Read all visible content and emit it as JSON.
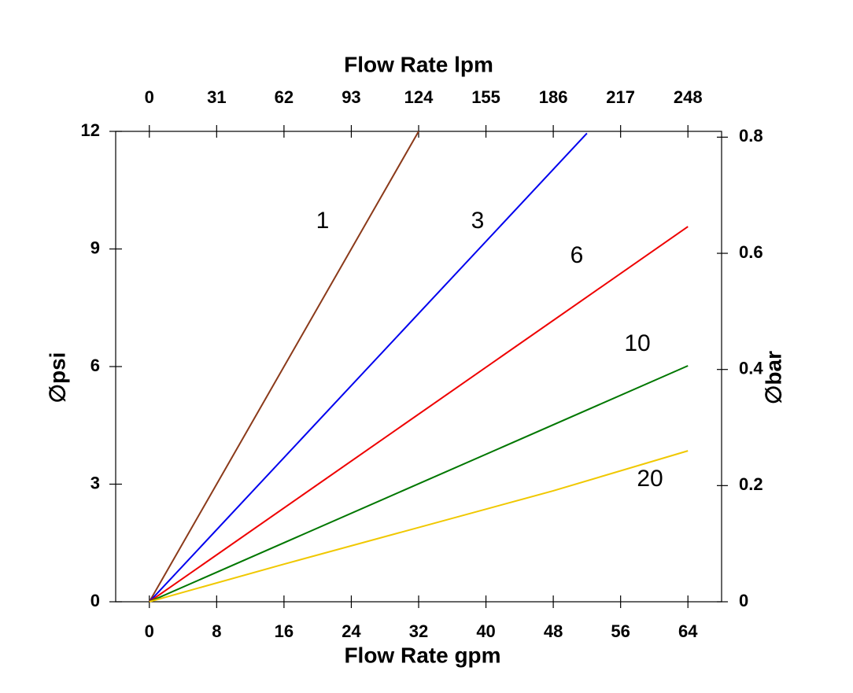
{
  "chart_data": {
    "type": "line",
    "xlabel": "Flow Rate gpm",
    "x2label": "Flow Rate lpm",
    "ylabel": "∅psi",
    "y2label": "∅bar",
    "xlim": [
      -4,
      68
    ],
    "xticks": [
      0,
      8,
      16,
      24,
      32,
      40,
      48,
      56,
      64
    ],
    "x2lim": [
      -15.5,
      263.5
    ],
    "x2ticks": [
      0,
      31,
      62,
      93,
      124,
      155,
      186,
      217,
      248
    ],
    "ylim": [
      0,
      12
    ],
    "yticks": [
      0,
      3,
      6,
      9,
      12
    ],
    "y2lim": [
      0,
      0.81
    ],
    "y2ticks": [
      0,
      0.2,
      0.4,
      0.6,
      0.8
    ],
    "series": [
      {
        "name": "1",
        "color": "#8b3a1a",
        "x": [
          0,
          32
        ],
        "values": [
          0,
          12
        ]
      },
      {
        "name": "3",
        "color": "#0000ee",
        "x": [
          0,
          52
        ],
        "values": [
          0,
          11.95
        ]
      },
      {
        "name": "6",
        "color": "#ee0000",
        "x": [
          0,
          64
        ],
        "values": [
          0,
          9.57
        ]
      },
      {
        "name": "10",
        "color": "#007700",
        "x": [
          0,
          64
        ],
        "values": [
          0,
          6.02
        ]
      },
      {
        "name": "20",
        "color": "#f0c800",
        "x": [
          0,
          16,
          48,
          64
        ],
        "values": [
          0,
          0.96,
          2.83,
          3.85
        ]
      }
    ]
  }
}
